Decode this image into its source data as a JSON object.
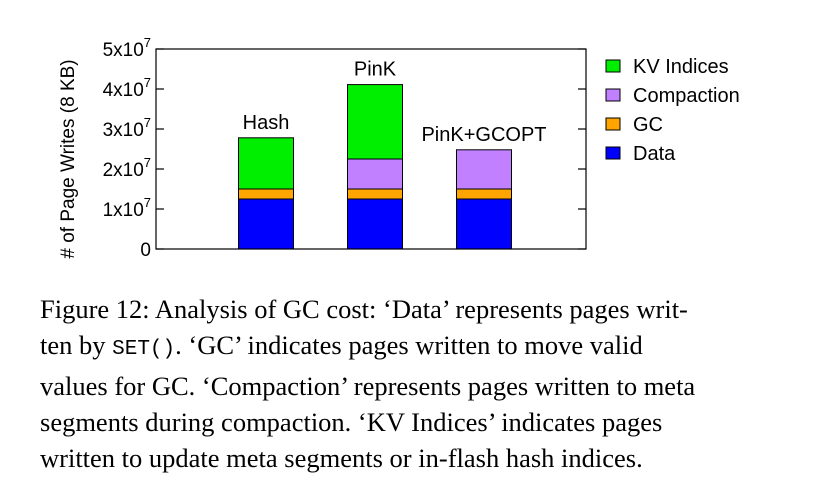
{
  "chart_data": {
    "type": "bar",
    "stacked": true,
    "categories": [
      "Hash",
      "PinK",
      "PinK+GCOPT"
    ],
    "series": [
      {
        "name": "Data",
        "color": "#0000ff",
        "values": [
          12500000,
          12500000,
          12500000
        ]
      },
      {
        "name": "GC",
        "color": "#ffa500",
        "values": [
          2500000,
          2500000,
          2500000
        ]
      },
      {
        "name": "Compaction",
        "color": "#c080ff",
        "values": [
          0,
          7500000,
          9800000
        ]
      },
      {
        "name": "KV Indices",
        "color": "#00ee00",
        "values": [
          12800000,
          18600000,
          0
        ]
      }
    ],
    "ylabel": "# of Page Writes (8 KB)",
    "ylim": [
      0,
      50000000
    ],
    "yticks": [
      {
        "value": 0,
        "mantissa": "0",
        "exp": ""
      },
      {
        "value": 10000000,
        "mantissa": "1x10",
        "exp": "7"
      },
      {
        "value": 20000000,
        "mantissa": "2x10",
        "exp": "7"
      },
      {
        "value": 30000000,
        "mantissa": "3x10",
        "exp": "7"
      },
      {
        "value": 40000000,
        "mantissa": "4x10",
        "exp": "7"
      },
      {
        "value": 50000000,
        "mantissa": "5x10",
        "exp": "7"
      }
    ],
    "legend": {
      "placement": "right",
      "entries": [
        "KV Indices",
        "Compaction",
        "GC",
        "Data"
      ]
    },
    "grid": false
  },
  "caption": {
    "line1": "Figure 12: Analysis of GC cost: ‘Data’ represents pages writ-",
    "line2_pre": "ten by ",
    "line2_code": "SET()",
    "line2_post": ". ‘GC’ indicates pages written to move valid",
    "line3": "values for GC. ‘Compaction’ represents pages written to meta",
    "line4": "segments during compaction. ‘KV Indices’ indicates pages",
    "line5": "written to update meta segments or in-flash hash indices."
  }
}
